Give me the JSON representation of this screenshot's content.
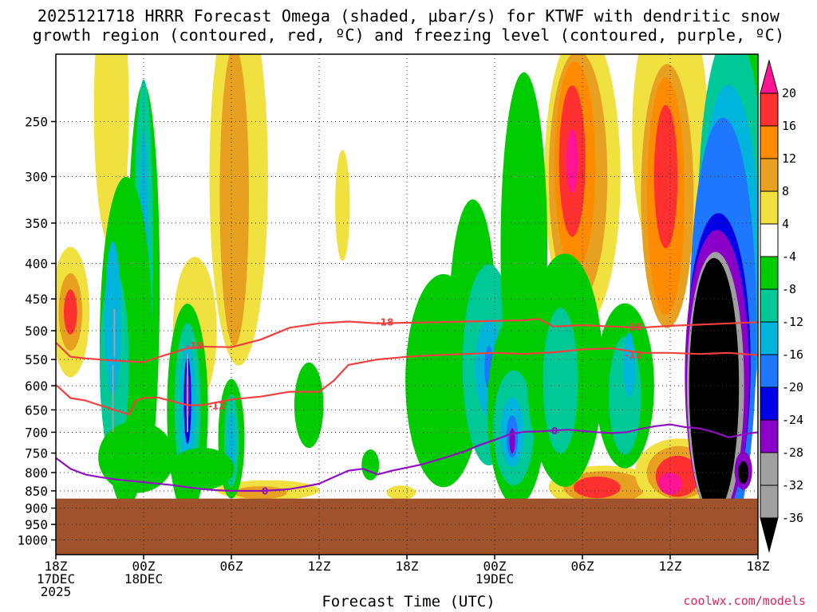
{
  "title_line1": "2025121718 HRRR Forecast Omega (shaded, μbar/s) for KTWF with dendritic snow",
  "title_line2": "growth region (contoured, red, ºC) and freezing level (contoured, purple, ºC)",
  "xlabel": "Forecast Time (UTC)",
  "credit": "coolwx.com/models",
  "chart_data": {
    "type": "heatmap",
    "x_forecast_hours": [
      0,
      48
    ],
    "y_pressure_hpa": [
      1050,
      200
    ],
    "y_ticks": [
      "250",
      "300",
      "350",
      "400",
      "450",
      "500",
      "550",
      "600",
      "650",
      "700",
      "750",
      "800",
      "850",
      "900",
      "950",
      "1000"
    ],
    "x_ticks": [
      {
        "hour": 0,
        "l1": "18Z",
        "l2": "17DEC",
        "l3": "2025"
      },
      {
        "hour": 6,
        "l1": "00Z",
        "l2": "18DEC",
        "l3": ""
      },
      {
        "hour": 12,
        "l1": "06Z",
        "l2": "",
        "l3": ""
      },
      {
        "hour": 18,
        "l1": "12Z",
        "l2": "",
        "l3": ""
      },
      {
        "hour": 24,
        "l1": "18Z",
        "l2": "",
        "l3": ""
      },
      {
        "hour": 30,
        "l1": "00Z",
        "l2": "19DEC",
        "l3": ""
      },
      {
        "hour": 36,
        "l1": "06Z",
        "l2": "",
        "l3": ""
      },
      {
        "hour": 42,
        "l1": "12Z",
        "l2": "",
        "l3": ""
      },
      {
        "hour": 48,
        "l1": "18Z",
        "l2": "",
        "l3": ""
      }
    ],
    "colorbar_labels": [
      "20",
      "16",
      "12",
      "8",
      "4",
      "-4",
      "-8",
      "-12",
      "-16",
      "-20",
      "-24",
      "-28",
      "-32",
      "-36"
    ],
    "colors": {
      "c20": "#ff1493",
      "c16": "#ff3030",
      "c12": "#ff8c00",
      "c8": "#e8a020",
      "c4": "#f0e040",
      "cn4": "#ffffff",
      "cn8": "#00cc00",
      "cn12": "#00c896",
      "cn16": "#00b4dc",
      "cn20": "#1e78ff",
      "cn24": "#0000e6",
      "cn28": "#8a00c8",
      "cn32": "#a0a0a0",
      "cn36": "#000000",
      "terrain": "#a0522d",
      "dgz": "#f04040",
      "freezing": "#9010c0"
    },
    "terrain_top_hpa": 872,
    "dgz_minus18": {
      "label": "-18",
      "hours": [
        0,
        1,
        2,
        4,
        6,
        7,
        9,
        10,
        12,
        14,
        16,
        18,
        20,
        22,
        24,
        26,
        28,
        30,
        32,
        33,
        34,
        36,
        38,
        40,
        42,
        44,
        46,
        48
      ],
      "p": [
        520,
        545,
        548,
        552,
        555,
        546,
        530,
        527,
        528,
        515,
        495,
        488,
        485,
        488,
        487,
        486,
        485,
        484,
        483,
        481,
        493,
        491,
        493,
        495,
        492,
        490,
        488,
        486
      ],
      "labels": [
        {
          "hour": 9.5,
          "p": 526
        },
        {
          "hour": 22.5,
          "p": 486
        },
        {
          "hour": 39.5,
          "p": 494
        }
      ]
    },
    "dgz_minus12": {
      "label": "-12",
      "hours": [
        0,
        1,
        2,
        3,
        4,
        5,
        5.5,
        6,
        7,
        8,
        9,
        10,
        12,
        14,
        16,
        18,
        19,
        20,
        22,
        24,
        26,
        28,
        30,
        32,
        34,
        36,
        38,
        40,
        42,
        44,
        46,
        48
      ],
      "p": [
        598,
        625,
        630,
        640,
        650,
        660,
        630,
        625,
        624,
        632,
        640,
        640,
        628,
        622,
        612,
        612,
        590,
        560,
        550,
        545,
        542,
        540,
        538,
        540,
        537,
        532,
        530,
        538,
        538,
        540,
        538,
        542
      ],
      "labels": [
        {
          "hour": 11,
          "p": 642
        },
        {
          "hour": 39.5,
          "p": 542
        }
      ]
    },
    "freezing_0": {
      "label": "0",
      "hours": [
        0,
        1,
        2,
        3,
        4,
        5,
        6,
        7,
        8,
        9,
        10,
        11,
        12,
        13,
        14,
        15,
        16,
        17,
        18,
        19,
        20,
        21,
        22,
        23,
        24,
        25,
        26,
        27,
        28,
        29,
        30,
        31,
        32,
        33,
        34,
        35,
        36,
        37,
        38,
        39,
        40,
        41,
        42,
        43,
        44,
        45,
        46,
        47,
        48
      ],
      "p": [
        762,
        790,
        805,
        812,
        818,
        822,
        826,
        830,
        834,
        840,
        845,
        848,
        850,
        850,
        850,
        848,
        845,
        838,
        830,
        812,
        795,
        790,
        805,
        795,
        787,
        779,
        768,
        757,
        745,
        730,
        718,
        705,
        699,
        698,
        696,
        694,
        697,
        700,
        702,
        700,
        692,
        686,
        682,
        688,
        691,
        700,
        712,
        705,
        700
      ],
      "labels": [
        {
          "hour": 14.3,
          "p": 851
        },
        {
          "hour": 34.1,
          "p": 697
        }
      ]
    }
  }
}
